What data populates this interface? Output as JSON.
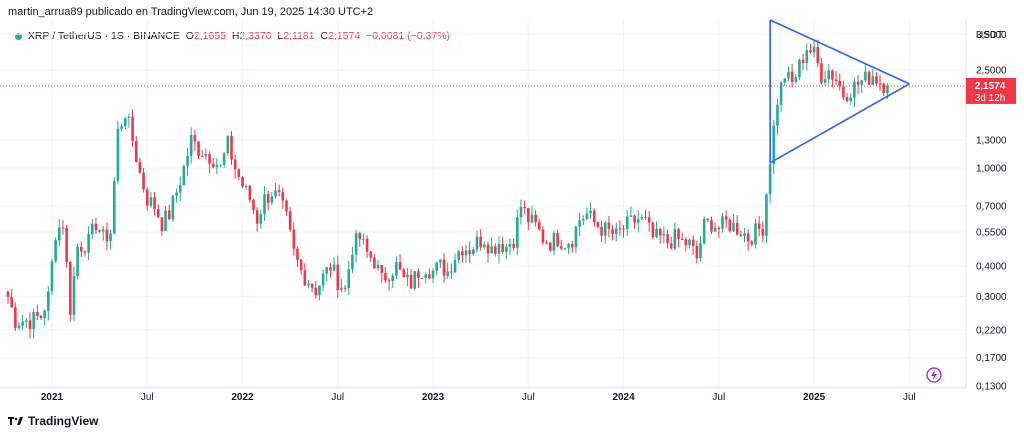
{
  "header": {
    "attribution": "martin_arrua89 publicado en TradingView.com, Jun 19, 2025 14:30 UTC+2"
  },
  "symbol": {
    "name": "XRP / TetherUS · 1S · BINANCE",
    "o_label": "O",
    "o_value": "2,1655",
    "h_label": "H",
    "h_value": "2,3370",
    "l_label": "L",
    "l_value": "2,1181",
    "c_label": "C",
    "c_value": "2,1574",
    "change": "−0,0081 (−0,37%)"
  },
  "price_axis": {
    "currency": "USDT",
    "current_price": "2,1574",
    "countdown": "3d 12h"
  },
  "footer": {
    "brand": "TradingView"
  },
  "colors": {
    "up": "#22ab94",
    "down": "#f23645",
    "pattern": "#2962ff",
    "grid": "#f0f3fa"
  },
  "chart_data": {
    "type": "candlestick",
    "title": "XRP / TetherUS · 1S · BINANCE",
    "scale": "log",
    "ylim": [
      0.13,
      4.0
    ],
    "y_ticks": [
      {
        "value": 3.5,
        "label": "3,5000"
      },
      {
        "value": 2.5,
        "label": "2,5000"
      },
      {
        "value": 1.3,
        "label": "1,3000"
      },
      {
        "value": 1.0,
        "label": "1,0000"
      },
      {
        "value": 0.7,
        "label": "0,7000"
      },
      {
        "value": 0.55,
        "label": "0,5500"
      },
      {
        "value": 0.4,
        "label": "0,4000"
      },
      {
        "value": 0.3,
        "label": "0,3000"
      },
      {
        "value": 0.22,
        "label": "0,2200"
      },
      {
        "value": 0.17,
        "label": "0,1700"
      },
      {
        "value": 0.13,
        "label": "0,1300"
      }
    ],
    "x_ticks": [
      {
        "week": 12,
        "label": "2021",
        "bold": true
      },
      {
        "week": 38,
        "label": "Jul",
        "bold": false
      },
      {
        "week": 64,
        "label": "2022",
        "bold": true
      },
      {
        "week": 90,
        "label": "Jul",
        "bold": false
      },
      {
        "week": 116,
        "label": "2023",
        "bold": true
      },
      {
        "week": 142,
        "label": "Jul",
        "bold": false
      },
      {
        "week": 168,
        "label": "2024",
        "bold": true
      },
      {
        "week": 194,
        "label": "Jul",
        "bold": false
      },
      {
        "week": 220,
        "label": "2025",
        "bold": true
      },
      {
        "week": 246,
        "label": "Jul",
        "bold": false
      }
    ],
    "close_anchors": [
      [
        0,
        0.3
      ],
      [
        2,
        0.24
      ],
      [
        6,
        0.24
      ],
      [
        9,
        0.25
      ],
      [
        11,
        0.3
      ],
      [
        13,
        0.55
      ],
      [
        15,
        0.6
      ],
      [
        17,
        0.27
      ],
      [
        19,
        0.48
      ],
      [
        22,
        0.5
      ],
      [
        24,
        0.6
      ],
      [
        26,
        0.52
      ],
      [
        28,
        0.55
      ],
      [
        30,
        1.4
      ],
      [
        32,
        1.7
      ],
      [
        34,
        1.3
      ],
      [
        36,
        0.95
      ],
      [
        38,
        0.75
      ],
      [
        40,
        0.7
      ],
      [
        42,
        0.6
      ],
      [
        44,
        0.65
      ],
      [
        46,
        0.8
      ],
      [
        48,
        1.0
      ],
      [
        50,
        1.3
      ],
      [
        52,
        1.2
      ],
      [
        54,
        1.15
      ],
      [
        56,
        1.1
      ],
      [
        58,
        1.0
      ],
      [
        60,
        1.25
      ],
      [
        62,
        1.0
      ],
      [
        64,
        0.85
      ],
      [
        66,
        0.75
      ],
      [
        68,
        0.62
      ],
      [
        70,
        0.75
      ],
      [
        72,
        0.8
      ],
      [
        74,
        0.75
      ],
      [
        76,
        0.62
      ],
      [
        78,
        0.45
      ],
      [
        80,
        0.38
      ],
      [
        82,
        0.35
      ],
      [
        84,
        0.32
      ],
      [
        86,
        0.36
      ],
      [
        88,
        0.4
      ],
      [
        90,
        0.35
      ],
      [
        92,
        0.32
      ],
      [
        94,
        0.48
      ],
      [
        96,
        0.52
      ],
      [
        98,
        0.45
      ],
      [
        100,
        0.42
      ],
      [
        102,
        0.35
      ],
      [
        104,
        0.38
      ],
      [
        106,
        0.4
      ],
      [
        108,
        0.35
      ],
      [
        110,
        0.34
      ],
      [
        112,
        0.38
      ],
      [
        114,
        0.4
      ],
      [
        116,
        0.38
      ],
      [
        118,
        0.4
      ],
      [
        120,
        0.38
      ],
      [
        122,
        0.44
      ],
      [
        124,
        0.48
      ],
      [
        126,
        0.47
      ],
      [
        128,
        0.5
      ],
      [
        130,
        0.52
      ],
      [
        132,
        0.47
      ],
      [
        134,
        0.5
      ],
      [
        136,
        0.48
      ],
      [
        138,
        0.52
      ],
      [
        140,
        0.7
      ],
      [
        142,
        0.62
      ],
      [
        144,
        0.58
      ],
      [
        146,
        0.52
      ],
      [
        148,
        0.5
      ],
      [
        150,
        0.52
      ],
      [
        152,
        0.5
      ],
      [
        154,
        0.52
      ],
      [
        156,
        0.62
      ],
      [
        158,
        0.65
      ],
      [
        160,
        0.6
      ],
      [
        162,
        0.57
      ],
      [
        164,
        0.55
      ],
      [
        166,
        0.53
      ],
      [
        168,
        0.57
      ],
      [
        170,
        0.6
      ],
      [
        172,
        0.62
      ],
      [
        174,
        0.6
      ],
      [
        176,
        0.52
      ],
      [
        178,
        0.52
      ],
      [
        180,
        0.5
      ],
      [
        182,
        0.52
      ],
      [
        184,
        0.5
      ],
      [
        186,
        0.49
      ],
      [
        188,
        0.43
      ],
      [
        190,
        0.58
      ],
      [
        192,
        0.6
      ],
      [
        194,
        0.57
      ],
      [
        196,
        0.6
      ],
      [
        198,
        0.58
      ],
      [
        200,
        0.56
      ],
      [
        202,
        0.52
      ],
      [
        204,
        0.55
      ],
      [
        206,
        0.58
      ],
      [
        208,
        1.1
      ],
      [
        210,
        1.9
      ],
      [
        212,
        2.4
      ],
      [
        214,
        2.2
      ],
      [
        216,
        2.6
      ],
      [
        218,
        3.1
      ],
      [
        220,
        2.9
      ],
      [
        222,
        2.4
      ],
      [
        224,
        2.5
      ],
      [
        226,
        2.3
      ],
      [
        228,
        2.0
      ],
      [
        230,
        2.1
      ],
      [
        232,
        2.2
      ],
      [
        234,
        2.3
      ],
      [
        236,
        2.4
      ],
      [
        238,
        2.25
      ],
      [
        240,
        2.16
      ]
    ],
    "last_close": 2.1574,
    "pattern": {
      "name": "symmetrical triangle",
      "upper_start": {
        "week": 208,
        "price": 4.0
      },
      "lower_start": {
        "week": 208,
        "price": 1.05
      },
      "apex": {
        "week": 246,
        "price": 2.2
      }
    }
  }
}
